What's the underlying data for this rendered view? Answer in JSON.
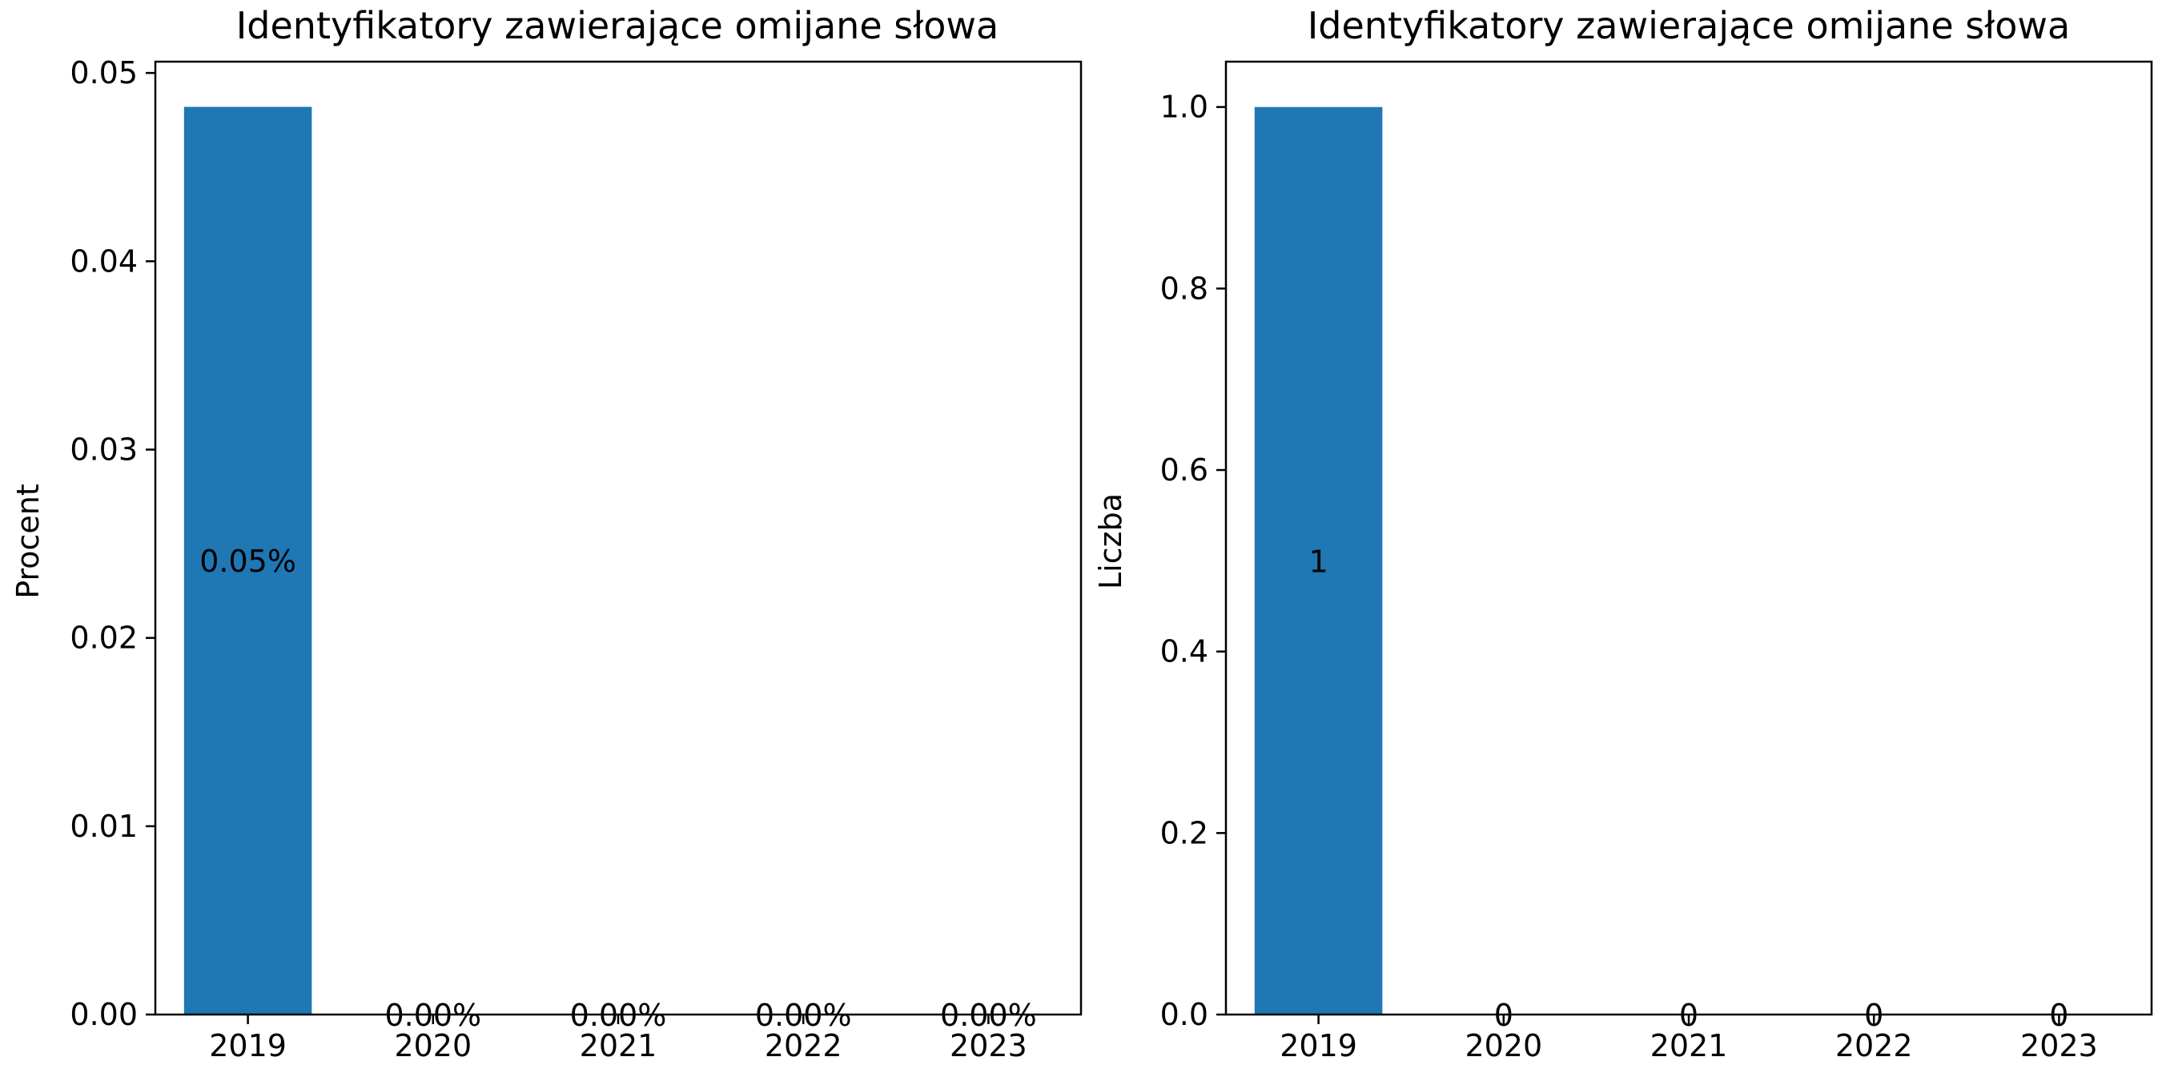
{
  "chart_data": [
    {
      "type": "bar",
      "title": "Identyfikatory zawierające omijane słowa",
      "xlabel": "",
      "ylabel": "Procent",
      "categories": [
        "2019",
        "2020",
        "2021",
        "2022",
        "2023"
      ],
      "values": [
        0.0482,
        0,
        0,
        0,
        0
      ],
      "bar_labels": [
        "0.05%",
        "0.00%",
        "0.00%",
        "0.00%",
        "0.00%"
      ],
      "yticks": [
        "0.00",
        "0.01",
        "0.02",
        "0.03",
        "0.04",
        "0.05"
      ],
      "ylim": [
        0,
        0.0506
      ],
      "grid": false,
      "color": "#1f77b4"
    },
    {
      "type": "bar",
      "title": "Identyfikatory zawierające omijane słowa",
      "xlabel": "",
      "ylabel": "Liczba",
      "categories": [
        "2019",
        "2020",
        "2021",
        "2022",
        "2023"
      ],
      "values": [
        1,
        0,
        0,
        0,
        0
      ],
      "bar_labels": [
        "1",
        "0",
        "0",
        "0",
        "0"
      ],
      "yticks": [
        "0.0",
        "0.2",
        "0.4",
        "0.6",
        "0.8",
        "1.0"
      ],
      "ylim": [
        0,
        1.05
      ],
      "grid": false,
      "color": "#1f77b4"
    }
  ]
}
